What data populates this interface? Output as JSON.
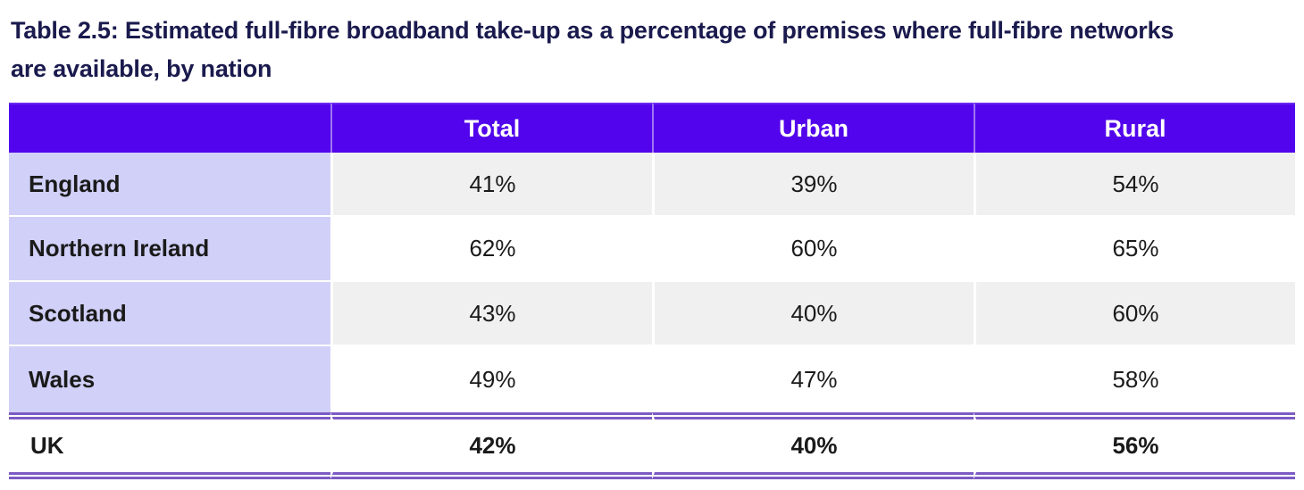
{
  "title": "Table 2.5: Estimated full-fibre broadband take-up as a percentage of premises where full-fibre networks are available, by nation",
  "table": {
    "headers": [
      "",
      "Total",
      "Urban",
      "Rural"
    ],
    "rows": [
      {
        "nation": "England",
        "total": "41%",
        "urban": "39%",
        "rural": "54%"
      },
      {
        "nation": "Northern Ireland",
        "total": "62%",
        "urban": "60%",
        "rural": "65%"
      },
      {
        "nation": "Scotland",
        "total": "43%",
        "urban": "40%",
        "rural": "60%"
      },
      {
        "nation": "Wales",
        "total": "49%",
        "urban": "47%",
        "rural": "58%"
      },
      {
        "nation": "UK",
        "total": "42%",
        "urban": "40%",
        "rural": "56%"
      }
    ]
  },
  "colors": {
    "header_bg": "#5205EC",
    "header_text": "#FFFFFF",
    "nation_column_bg": "#D0D0F8",
    "alt_row_bg": "#F0F0F0",
    "double_rule": "#7C5BC4",
    "title_text": "#1A1A4E",
    "body_text": "#1A1A1A"
  },
  "chart_data": {
    "type": "table",
    "title": "Table 2.5: Estimated full-fibre broadband take-up as a percentage of premises where full-fibre networks are available, by nation",
    "categories": [
      "England",
      "Northern Ireland",
      "Scotland",
      "Wales",
      "UK"
    ],
    "series": [
      {
        "name": "Total",
        "values": [
          41,
          62,
          43,
          49,
          42
        ]
      },
      {
        "name": "Urban",
        "values": [
          39,
          60,
          40,
          47,
          40
        ]
      },
      {
        "name": "Rural",
        "values": [
          54,
          65,
          60,
          58,
          56
        ]
      }
    ],
    "unit": "%",
    "layout_hints": {
      "summary_row": "UK",
      "alternating_row_shading": true,
      "header_position": "top"
    }
  }
}
